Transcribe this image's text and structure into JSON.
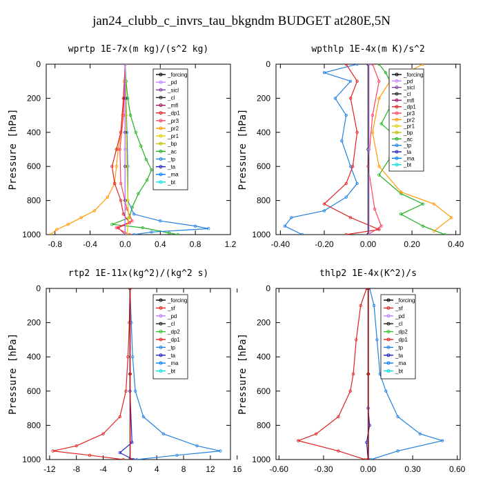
{
  "figure": {
    "title": "jan24_clubb_c_invrs_tau_bkgndm  BUDGET at280E,5N"
  },
  "colors": {
    "forcing": "#000000",
    "pd": "#c080ff",
    "sicl": "#8040a0",
    "cl": "#202020",
    "mfl": "#a01060",
    "dp1": "#e02020",
    "dp2": "#30c030",
    "pr3": "#ff4060",
    "pr2": "#ff9900",
    "pr1": "#e0d000",
    "bp": "#c0c000",
    "ac": "#20b020",
    "tp": "#2080e0",
    "ta": "#2020c0",
    "ma": "#0080ff",
    "bt": "#00e0e0",
    "sf": "#e02020",
    "cl_y": "#e0c000"
  },
  "chart_data": [
    {
      "type": "line",
      "title": "wprtp  1E-7x(m kg)/(s^2 kg)",
      "ylabel": "Pressure [hPa]",
      "xlim": [
        -0.9,
        1.2
      ],
      "ylim": [
        1000,
        0
      ],
      "xticks": [
        "-0.8",
        "-0.4",
        "0.0",
        "0.4",
        "0.8",
        "1.2"
      ],
      "yticks": [
        "0",
        "200",
        "400",
        "600",
        "800",
        "1000"
      ],
      "legend": [
        "_forcing",
        "_pd",
        "_sicl",
        "_cl",
        "_mfl",
        "_dp1",
        "_pr3",
        "_pr2",
        "_pr1",
        "_bp",
        "_ac",
        "_tp",
        "_ta",
        "_ma",
        "_bt"
      ],
      "series": [
        {
          "name": "_ac",
          "points": [
            [
              0,
              0
            ],
            [
              0.01,
              100
            ],
            [
              0.03,
              200
            ],
            [
              0.06,
              300
            ],
            [
              0.12,
              400
            ],
            [
              0.18,
              480
            ],
            [
              0.24,
              560
            ],
            [
              0.3,
              620
            ],
            [
              0.25,
              680
            ],
            [
              0.15,
              760
            ],
            [
              0.08,
              840
            ],
            [
              0.05,
              900
            ],
            [
              -0.15,
              940
            ],
            [
              0.2,
              960
            ],
            [
              0.5,
              990
            ],
            [
              0.6,
              1000
            ]
          ]
        },
        {
          "name": "_pr2",
          "points": [
            [
              0,
              0
            ],
            [
              -0.01,
              100
            ],
            [
              -0.02,
              200
            ],
            [
              -0.03,
              300
            ],
            [
              -0.05,
              400
            ],
            [
              -0.08,
              500
            ],
            [
              -0.1,
              600
            ],
            [
              -0.12,
              700
            ],
            [
              -0.2,
              780
            ],
            [
              -0.35,
              860
            ],
            [
              -0.5,
              900
            ],
            [
              -0.65,
              940
            ],
            [
              -0.78,
              970
            ],
            [
              -0.85,
              1000
            ]
          ]
        },
        {
          "name": "_tp",
          "points": [
            [
              0,
              0
            ],
            [
              0.01,
              200
            ],
            [
              0.02,
              400
            ],
            [
              0.03,
              600
            ],
            [
              0.03,
              800
            ],
            [
              0.1,
              880
            ],
            [
              0.4,
              920
            ],
            [
              0.8,
              950
            ],
            [
              0.95,
              965
            ],
            [
              0.3,
              985
            ],
            [
              0.1,
              1000
            ]
          ]
        },
        {
          "name": "_dp1",
          "points": [
            [
              0,
              0
            ],
            [
              -0.02,
              200
            ],
            [
              -0.05,
              400
            ],
            [
              -0.1,
              500
            ],
            [
              -0.15,
              600
            ],
            [
              -0.12,
              700
            ],
            [
              -0.05,
              800
            ],
            [
              -0.02,
              880
            ],
            [
              0.05,
              930
            ],
            [
              -0.08,
              960
            ],
            [
              0.0,
              1000
            ]
          ]
        },
        {
          "name": "_pr3",
          "points": [
            [
              0,
              0
            ],
            [
              -0.02,
              300
            ],
            [
              -0.06,
              500
            ],
            [
              -0.05,
              700
            ],
            [
              0.02,
              850
            ],
            [
              0.08,
              920
            ],
            [
              -0.1,
              960
            ],
            [
              0.05,
              1000
            ]
          ]
        },
        {
          "name": "_pr1",
          "points": [
            [
              0,
              0
            ],
            [
              0.01,
              300
            ],
            [
              0.02,
              600
            ],
            [
              0.03,
              800
            ],
            [
              0.04,
              900
            ],
            [
              0.02,
              1000
            ]
          ]
        },
        {
          "name": "_forcing",
          "points": [
            [
              0,
              0
            ],
            [
              0,
              200
            ],
            [
              0,
              400
            ],
            [
              0,
              600
            ],
            [
              0,
              800
            ],
            [
              0,
              1000
            ]
          ]
        },
        {
          "name": "_pd",
          "points": [
            [
              0,
              0
            ],
            [
              0,
              500
            ],
            [
              0,
              1000
            ]
          ]
        }
      ]
    },
    {
      "type": "line",
      "title": "wpthlp  1E-4x(m K)/s^2",
      "ylabel": "Pressure [hPa]",
      "xlim": [
        -0.42,
        0.42
      ],
      "ylim": [
        1000,
        0
      ],
      "xticks": [
        "-0.40",
        "-0.20",
        "0.00",
        "0.20",
        "0.40"
      ],
      "yticks": [
        "0",
        "200",
        "400",
        "600",
        "800",
        "1000"
      ],
      "legend": [
        "_forcing",
        "_pd",
        "_sicl",
        "_cl",
        "_mfl",
        "_dp1",
        "_pr3",
        "_pr2",
        "_pr1",
        "_bp",
        "_ac",
        "_tp",
        "_ta",
        "_ma",
        "_bt"
      ],
      "series": [
        {
          "name": "_tp",
          "points": [
            [
              -0.05,
              0
            ],
            [
              -0.2,
              50
            ],
            [
              -0.08,
              100
            ],
            [
              -0.15,
              200
            ],
            [
              -0.1,
              300
            ],
            [
              -0.12,
              450
            ],
            [
              -0.08,
              600
            ],
            [
              -0.05,
              700
            ],
            [
              -0.1,
              780
            ],
            [
              -0.2,
              860
            ],
            [
              -0.35,
              900
            ],
            [
              -0.38,
              950
            ],
            [
              -0.3,
              1000
            ]
          ]
        },
        {
          "name": "_ac",
          "points": [
            [
              0.05,
              0
            ],
            [
              0.08,
              50
            ],
            [
              0.12,
              150
            ],
            [
              0.1,
              250
            ],
            [
              0.06,
              350
            ],
            [
              0.15,
              450
            ],
            [
              0.1,
              550
            ],
            [
              0.05,
              650
            ],
            [
              0.15,
              760
            ],
            [
              0.25,
              820
            ],
            [
              0.15,
              880
            ],
            [
              0.25,
              950
            ],
            [
              0.35,
              1000
            ]
          ]
        },
        {
          "name": "_pr2",
          "points": [
            [
              0.25,
              0
            ],
            [
              0.1,
              100
            ],
            [
              0.05,
              200
            ],
            [
              0.02,
              400
            ],
            [
              0.05,
              600
            ],
            [
              0.15,
              750
            ],
            [
              0.3,
              820
            ],
            [
              0.38,
              900
            ],
            [
              0.3,
              980
            ]
          ]
        },
        {
          "name": "_dp1",
          "points": [
            [
              -0.1,
              0
            ],
            [
              -0.05,
              100
            ],
            [
              -0.08,
              200
            ],
            [
              -0.05,
              400
            ],
            [
              -0.07,
              600
            ],
            [
              -0.1,
              700
            ],
            [
              -0.2,
              820
            ],
            [
              -0.08,
              900
            ],
            [
              0.05,
              970
            ],
            [
              -0.1,
              1000
            ]
          ]
        },
        {
          "name": "_pr3",
          "points": [
            [
              0.02,
              0
            ],
            [
              0.05,
              100
            ],
            [
              0.02,
              300
            ],
            [
              0.0,
              600
            ],
            [
              0.03,
              850
            ],
            [
              0.06,
              950
            ],
            [
              0.0,
              1000
            ]
          ]
        },
        {
          "name": "_forcing",
          "points": [
            [
              0,
              0
            ],
            [
              0,
              500
            ],
            [
              0,
              1000
            ]
          ]
        },
        {
          "name": "_pd",
          "points": [
            [
              0.005,
              0
            ],
            [
              0.005,
              500
            ],
            [
              0.005,
              1000
            ]
          ]
        }
      ]
    },
    {
      "type": "line",
      "title": "rtp2  1E-11x(kg^2)/(kg^2 s)",
      "ylabel": "Pressure [hPa]",
      "xlim": [
        -12.5,
        15
      ],
      "ylim": [
        1000,
        0
      ],
      "xticks": [
        "-12",
        "-8",
        "-4",
        "0",
        "4",
        "8",
        "12",
        "16"
      ],
      "yticks": [
        "0",
        "200",
        "400",
        "600",
        "800",
        "1000"
      ],
      "legend": [
        "_forcing",
        "_sf",
        "_pd",
        "_cl",
        "_dp2",
        "_dp1",
        "_tp",
        "_ta",
        "_ma",
        "_bt"
      ],
      "series": [
        {
          "name": "_dp1",
          "points": [
            [
              0,
              0
            ],
            [
              -0.1,
              200
            ],
            [
              -0.3,
              400
            ],
            [
              -0.6,
              600
            ],
            [
              -1.5,
              750
            ],
            [
              -4,
              850
            ],
            [
              -8,
              920
            ],
            [
              -11.5,
              950
            ],
            [
              -6,
              975
            ],
            [
              -1,
              1000
            ]
          ]
        },
        {
          "name": "_tp",
          "points": [
            [
              0,
              0
            ],
            [
              0.2,
              200
            ],
            [
              0.4,
              400
            ],
            [
              0.8,
              600
            ],
            [
              2,
              750
            ],
            [
              5,
              850
            ],
            [
              10,
              920
            ],
            [
              13.5,
              950
            ],
            [
              7,
              975
            ],
            [
              1,
              1000
            ]
          ]
        },
        {
          "name": "_ta",
          "points": [
            [
              0,
              0
            ],
            [
              0,
              600
            ],
            [
              0.3,
              900
            ],
            [
              -1.5,
              960
            ],
            [
              0.5,
              1000
            ]
          ]
        },
        {
          "name": "_forcing",
          "points": [
            [
              0,
              0
            ],
            [
              0,
              500
            ],
            [
              0,
              1000
            ]
          ]
        },
        {
          "name": "_sf",
          "points": [
            [
              0.05,
              0
            ],
            [
              0.05,
              500
            ],
            [
              0.05,
              1000
            ]
          ]
        }
      ]
    },
    {
      "type": "line",
      "title": "thlp2  1E-4x(K^2)/s",
      "ylabel": "Pressure [hPa]",
      "xlim": [
        -0.62,
        0.62
      ],
      "ylim": [
        1000,
        0
      ],
      "xticks": [
        "-0.60",
        "-0.30",
        "0.00",
        "0.30",
        "0.60"
      ],
      "yticks": [
        "0",
        "200",
        "400",
        "600",
        "800",
        "1000"
      ],
      "legend": [
        "_forcing",
        "_sf",
        "_pd",
        "_cl",
        "_dp2",
        "_dp1",
        "_tp",
        "_ta",
        "_ma",
        "_bt"
      ],
      "series": [
        {
          "name": "_dp1",
          "points": [
            [
              -0.01,
              0
            ],
            [
              -0.05,
              100
            ],
            [
              -0.08,
              300
            ],
            [
              -0.1,
              500
            ],
            [
              -0.12,
              600
            ],
            [
              -0.2,
              750
            ],
            [
              -0.35,
              850
            ],
            [
              -0.47,
              890
            ],
            [
              -0.2,
              950
            ],
            [
              -0.02,
              1000
            ]
          ]
        },
        {
          "name": "_tp",
          "points": [
            [
              0.01,
              0
            ],
            [
              0.04,
              100
            ],
            [
              0.06,
              300
            ],
            [
              0.08,
              500
            ],
            [
              0.12,
              600
            ],
            [
              0.2,
              750
            ],
            [
              0.35,
              850
            ],
            [
              0.5,
              890
            ],
            [
              0.2,
              950
            ],
            [
              0.02,
              1000
            ]
          ]
        },
        {
          "name": "_ta",
          "points": [
            [
              0,
              0
            ],
            [
              0,
              700
            ],
            [
              0.01,
              800
            ],
            [
              -0.01,
              900
            ],
            [
              0,
              1000
            ]
          ]
        },
        {
          "name": "_forcing",
          "points": [
            [
              0,
              0
            ],
            [
              0,
              500
            ],
            [
              0,
              1000
            ]
          ]
        },
        {
          "name": "_sf",
          "points": [
            [
              0.003,
              0
            ],
            [
              0.003,
              500
            ],
            [
              0.003,
              1000
            ]
          ]
        }
      ]
    }
  ]
}
